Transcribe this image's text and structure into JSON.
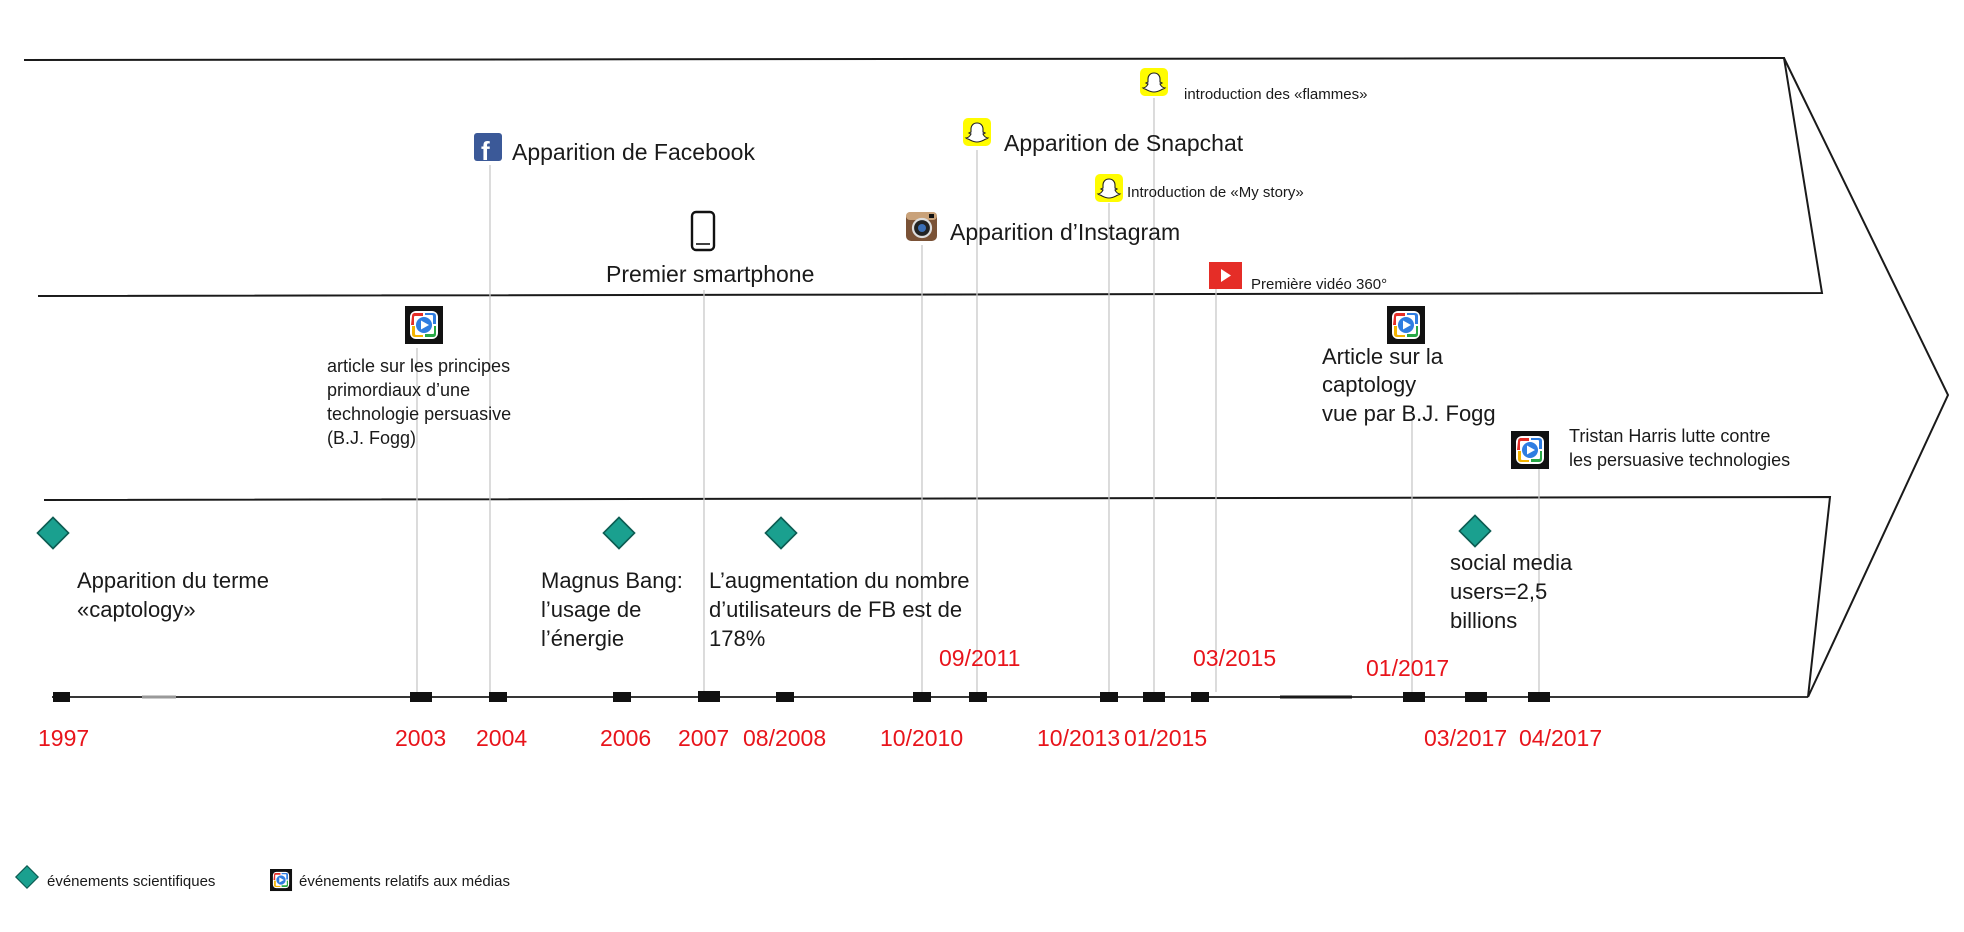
{
  "colors": {
    "outline": "#1a1a1a",
    "date_red": "#e8141b",
    "diamond": "#1aa08f",
    "snapchat": "#fffc00",
    "youtube": "#e52d27",
    "facebook": "#3b5998"
  },
  "events": {
    "facebook": "Apparition de Facebook",
    "smartphone": "Premier smartphone",
    "instagram": "Apparition d’Instagram",
    "snapchat": "Apparition de Snapchat",
    "flammes": "introduction des «flammes»",
    "my_story": "Introduction de «My story»",
    "video360": "Première vidéo 360°",
    "fogg_article": [
      "article sur les principes",
      "primordiaux d’une",
      "technologie persuasive",
      "(B.J. Fogg)"
    ],
    "fogg_captology": [
      "Article sur la",
      "captology",
      "vue par B.J. Fogg"
    ],
    "tristan": [
      "Tristan Harris lutte contre",
      "les persuasive technologies"
    ],
    "captology_term": [
      "Apparition du terme",
      "«captology»"
    ],
    "magnus": [
      "Magnus Bang:",
      "l’usage de",
      "l’énergie"
    ],
    "fb_growth": [
      "L’augmentation du nombre",
      "d’utilisateurs de FB est de",
      "178%"
    ],
    "social_media": [
      "social media",
      "users=2,5",
      "billions"
    ]
  },
  "dates": {
    "d1997": "1997",
    "d2003": "2003",
    "d2004": "2004",
    "d2006": "2006",
    "d2007": "2007",
    "d082008": "08/2008",
    "d102010": "10/2010",
    "d092011": "09/2011",
    "d102013": "10/2013",
    "d012015": "01/2015",
    "d032015": "03/2015",
    "d012017": "01/2017",
    "d032017": "03/2017",
    "d042017": "04/2017"
  },
  "legend": {
    "scientific": "événements scientifiques",
    "media": "événements relatifs aux médias"
  },
  "icons": {
    "facebook": "facebook-icon",
    "smartphone": "smartphone-icon",
    "instagram": "instagram-icon",
    "snapchat": "snapchat-icon",
    "youtube": "youtube-icon",
    "media_player": "media-player-icon",
    "scientific": "diamond-icon"
  }
}
